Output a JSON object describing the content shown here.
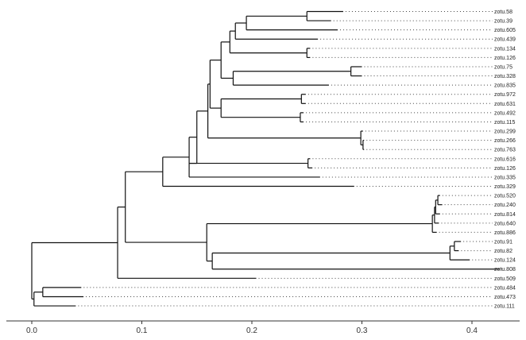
{
  "tree": {
    "line_color": "#111111",
    "dot_color": "#444444",
    "axis_ticks": [
      {
        "label": "0.0",
        "value": 0.0
      },
      {
        "label": "0.1",
        "value": 0.1
      },
      {
        "label": "0.2",
        "value": 0.2
      },
      {
        "label": "0.3",
        "value": 0.3
      },
      {
        "label": "0.4",
        "value": 0.4
      }
    ],
    "tips": [
      {
        "label": "zotu.58",
        "depth": 0.283
      },
      {
        "label": "zotu.39",
        "depth": 0.272
      },
      {
        "label": "zotu.605",
        "depth": 0.278
      },
      {
        "label": "zotu.439",
        "depth": 0.26
      },
      {
        "label": "zotu.134",
        "depth": 0.253
      },
      {
        "label": "zotu.126",
        "depth": 0.253
      },
      {
        "label": "zotu.75",
        "depth": 0.3
      },
      {
        "label": "zotu.328",
        "depth": 0.3
      },
      {
        "label": "zotu.835",
        "depth": 0.27
      },
      {
        "label": "zotu.972",
        "depth": 0.249
      },
      {
        "label": "zotu.631",
        "depth": 0.249
      },
      {
        "label": "zotu.492",
        "depth": 0.247
      },
      {
        "label": "zotu.115",
        "depth": 0.247
      },
      {
        "label": "zotu.299",
        "depth": 0.301
      },
      {
        "label": "zotu.266",
        "depth": 0.302
      },
      {
        "label": "zotu.763",
        "depth": 0.302
      },
      {
        "label": "zotu.616",
        "depth": 0.253
      },
      {
        "label": "zotu.126",
        "depth": 0.255
      },
      {
        "label": "zotu.335",
        "depth": 0.262
      },
      {
        "label": "zotu.329",
        "depth": 0.293
      },
      {
        "label": "zotu.520",
        "depth": 0.371
      },
      {
        "label": "zotu.240",
        "depth": 0.373
      },
      {
        "label": "zotu.814",
        "depth": 0.371
      },
      {
        "label": "zotu.640",
        "depth": 0.37
      },
      {
        "label": "zotu.886",
        "depth": 0.368
      },
      {
        "label": "zotu.91",
        "depth": 0.39
      },
      {
        "label": "zotu.82",
        "depth": 0.388
      },
      {
        "label": "zotu.124",
        "depth": 0.398
      },
      {
        "label": "zotu.808",
        "depth": 0.425
      },
      {
        "label": "zotu.509",
        "depth": 0.204
      },
      {
        "label": "zotu.484",
        "depth": 0.045
      },
      {
        "label": "zotu.473",
        "depth": 0.047
      },
      {
        "label": "zotu.111",
        "depth": 0.04
      }
    ],
    "nodes": {
      "r": {
        "depth": 0.0,
        "children": [
          "n1",
          "t31"
        ]
      },
      "t31": {
        "depth": 0.002,
        "children": [
          "n_tail",
          32
        ]
      },
      "n_tail": {
        "depth": 0.01,
        "children": [
          30,
          31
        ]
      },
      "n1": {
        "depth": 0.078,
        "children": [
          "n2",
          29
        ]
      },
      "n2": {
        "depth": 0.085,
        "children": [
          "n3",
          "n20"
        ]
      },
      "n3": {
        "depth": 0.119,
        "children": [
          "n4",
          19
        ]
      },
      "n4": {
        "depth": 0.143,
        "children": [
          "n5",
          18
        ]
      },
      "n5": {
        "depth": 0.15,
        "children": [
          "n6",
          "n16"
        ]
      },
      "n6": {
        "depth": 0.16,
        "children": [
          "n7",
          "n13"
        ]
      },
      "n7": {
        "depth": 0.162,
        "children": [
          "n8",
          "n11"
        ]
      },
      "n8": {
        "depth": 0.172,
        "children": [
          "n9",
          "n10"
        ]
      },
      "n9": {
        "depth": 0.18,
        "children": [
          "n9a",
          "n9b"
        ]
      },
      "n9a": {
        "depth": 0.185,
        "children": [
          "n9c",
          3
        ]
      },
      "n9c": {
        "depth": 0.195,
        "children": [
          "n9d",
          2
        ]
      },
      "n9d": {
        "depth": 0.25,
        "children": [
          0,
          1
        ]
      },
      "n9b": {
        "depth": 0.25,
        "children": [
          4,
          5
        ]
      },
      "n10": {
        "depth": 0.183,
        "children": [
          "n10a",
          8
        ]
      },
      "n10a": {
        "depth": 0.29,
        "children": [
          6,
          7
        ]
      },
      "n11": {
        "depth": 0.172,
        "children": [
          "n11a",
          "n11b"
        ]
      },
      "n11a": {
        "depth": 0.245,
        "children": [
          9,
          10
        ]
      },
      "n11b": {
        "depth": 0.244,
        "children": [
          11,
          12
        ]
      },
      "n13": {
        "depth": 0.16,
        "children": [
          "n13a"
        ]
      },
      "n13a": {
        "depth": 0.299,
        "children": [
          13,
          "n13b"
        ]
      },
      "n13b": {
        "depth": 0.301,
        "children": [
          14,
          15
        ]
      },
      "n16": {
        "depth": 0.143,
        "children": [
          "n16a"
        ]
      },
      "n16a": {
        "depth": 0.251,
        "children": [
          16,
          17
        ]
      },
      "n20": {
        "depth": 0.159,
        "children": [
          "n21",
          "n25"
        ]
      },
      "n21": {
        "depth": 0.364,
        "children": [
          "n21a",
          24
        ]
      },
      "n21a": {
        "depth": 0.366,
        "children": [
          "n21b",
          23
        ]
      },
      "n21b": {
        "depth": 0.367,
        "children": [
          "n21c",
          22
        ]
      },
      "n21c": {
        "depth": 0.369,
        "children": [
          20,
          21
        ]
      },
      "n25": {
        "depth": 0.164,
        "children": [
          "n26",
          28
        ]
      },
      "n26": {
        "depth": 0.38,
        "children": [
          "n26a",
          27
        ]
      },
      "n26a": {
        "depth": 0.384,
        "children": [
          25,
          26
        ]
      }
    }
  }
}
